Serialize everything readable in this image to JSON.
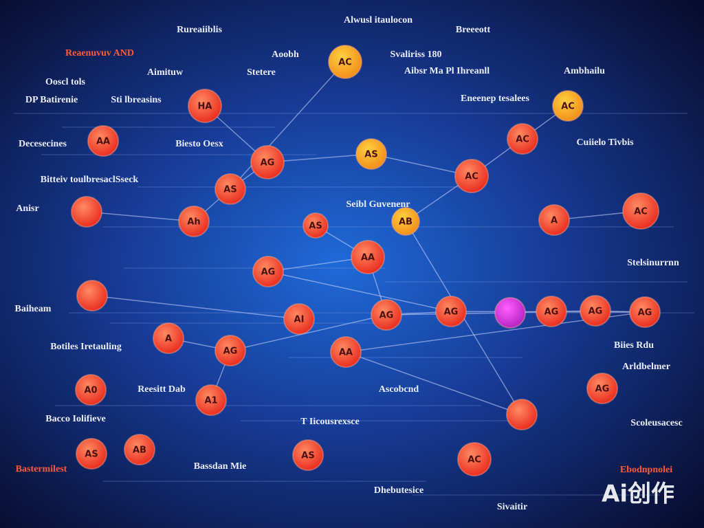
{
  "labels": [
    "Rureaiiblis",
    "Alwusl itaulocon",
    "Breeeott",
    "Reaenuvuv AND",
    "Aoobh",
    "Svaliriss 180",
    "Ooscl tols",
    "Aimituw",
    "Stetere",
    "Aibsr Ma Pl Ihreanll",
    "Ambhailu",
    "DP Batirenie",
    "Sti lbreasins",
    "Eneenep tesalees",
    "Decesecines",
    "Biesto Oesx",
    "Cuiielo Tivbis",
    "Bitteiv toulbresaclSseck",
    "Anisr",
    "Seibl Guvenenr",
    "Baiheam",
    "Botiles Iretauling",
    "Stelsinurrnn",
    "Ascobcnd",
    "Reesitt Dab",
    "Bacco Iolifieve",
    "T Iicousrexsce",
    "Scoleusacesc",
    "Bastermilest",
    "Bassdan Mie",
    "Ebodnpnolei",
    "Dhebutesice",
    "Sivaitir",
    "Arldbelmer",
    "Biies Rdu"
  ],
  "nodes": [
    {
      "label": "AC"
    },
    {
      "label": "AC"
    },
    {
      "label": "HA"
    },
    {
      "label": "AC"
    },
    {
      "label": "AS"
    },
    {
      "label": "AG"
    },
    {
      "label": "AC"
    },
    {
      "label": "AA"
    },
    {
      "label": "AS"
    },
    {
      "label": "Ah"
    },
    {
      "label": "AS"
    },
    {
      "label": "AB"
    },
    {
      "label": "A"
    },
    {
      "label": "AC"
    },
    {
      "label": "AA"
    },
    {
      "label": "AG"
    },
    {
      "label": "AG"
    },
    {
      "label": "AG"
    },
    {
      "label": "AI"
    },
    {
      "label": "AG"
    },
    {
      "label": "AG"
    },
    {
      "label": "AG"
    },
    {
      "label": "A"
    },
    {
      "label": "AG"
    },
    {
      "label": "AA"
    },
    {
      "label": "A0"
    },
    {
      "label": "A1"
    },
    {
      "label": "AG"
    },
    {
      "label": "AS"
    },
    {
      "label": "AB"
    },
    {
      "label": "AS"
    },
    {
      "label": "AC"
    }
  ],
  "watermark": "Ai创作"
}
